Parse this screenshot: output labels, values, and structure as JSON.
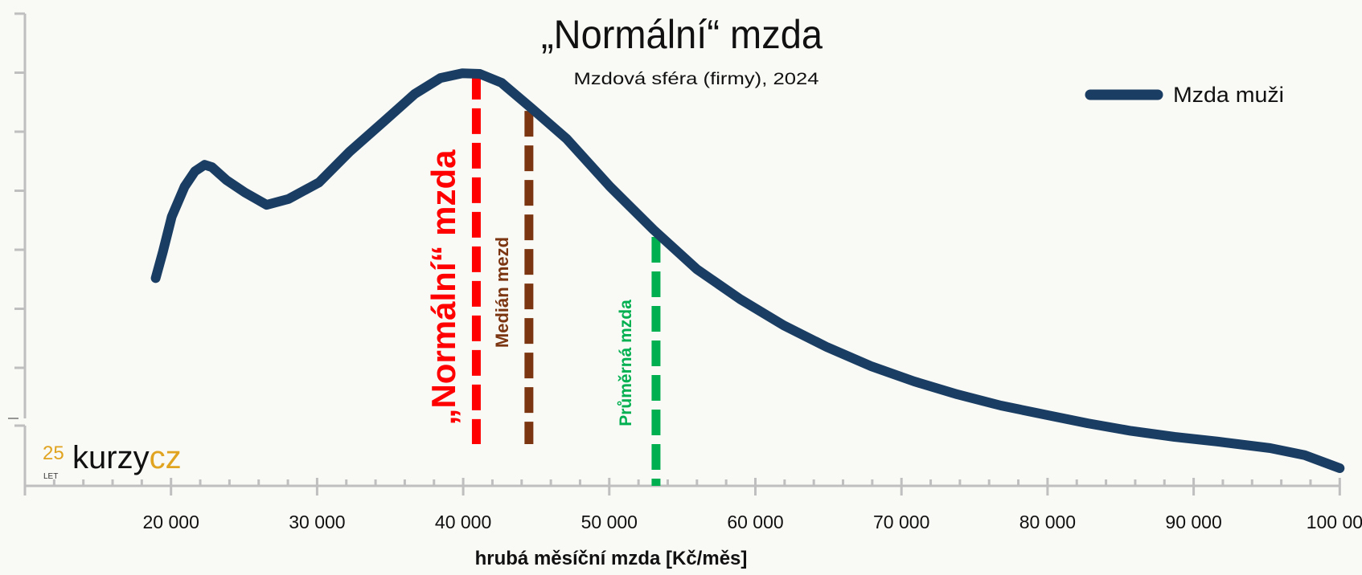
{
  "chart_data": {
    "type": "line",
    "title": "„Normální“ mzda",
    "subtitle": "Mzdová sféra (firmy), 2024",
    "xlabel": "hrubá měsíční mzda [Kč/měs]",
    "ylabel": "",
    "xlim": [
      10000,
      100000
    ],
    "ylim": [
      0,
      8
    ],
    "x_ticks": [
      20000,
      30000,
      40000,
      50000,
      60000,
      70000,
      80000,
      90000,
      100000
    ],
    "x_tick_labels": [
      "20 000",
      "30 000",
      "40 000",
      "50 000",
      "60 000",
      "70 000",
      "80 000",
      "90 000",
      "100 000"
    ],
    "x_minor_step": 2000,
    "y_tick_labels_shown": false,
    "grid": false,
    "legend_position": "top-right",
    "series": [
      {
        "name": "Mzda muži",
        "color": "#1a3d63",
        "x": [
          18950,
          19450,
          20050,
          20930,
          21640,
          22300,
          22800,
          23800,
          25060,
          26550,
          28040,
          30130,
          32220,
          34600,
          36680,
          38450,
          39940,
          41140,
          42620,
          44710,
          47080,
          50050,
          53020,
          56000,
          58970,
          61940,
          64910,
          67890,
          70860,
          73830,
          76800,
          79770,
          82750,
          85720,
          88690,
          91660,
          95240,
          97600,
          100000
        ],
        "y": [
          3.52,
          3.97,
          4.56,
          5.07,
          5.33,
          5.44,
          5.4,
          5.18,
          4.97,
          4.76,
          4.86,
          5.14,
          5.66,
          6.18,
          6.64,
          6.91,
          6.99,
          6.98,
          6.83,
          6.39,
          5.88,
          5.07,
          4.34,
          3.67,
          3.16,
          2.72,
          2.35,
          2.03,
          1.77,
          1.55,
          1.36,
          1.21,
          1.06,
          0.93,
          0.83,
          0.75,
          0.64,
          0.52,
          0.3
        ]
      }
    ],
    "markers": [
      {
        "label": "„Normální“ mzda",
        "x": 40900,
        "color": "#ff0000"
      },
      {
        "label": "Medián mezd",
        "x": 44500,
        "color": "#7b3510"
      },
      {
        "label": "Průměrná mzda",
        "x": 53200,
        "color": "#00b050"
      }
    ]
  },
  "logo": {
    "years": "25",
    "let": "LET",
    "name_a": "kurzy",
    "name_b": "cz",
    "accent": "#e0a420"
  }
}
